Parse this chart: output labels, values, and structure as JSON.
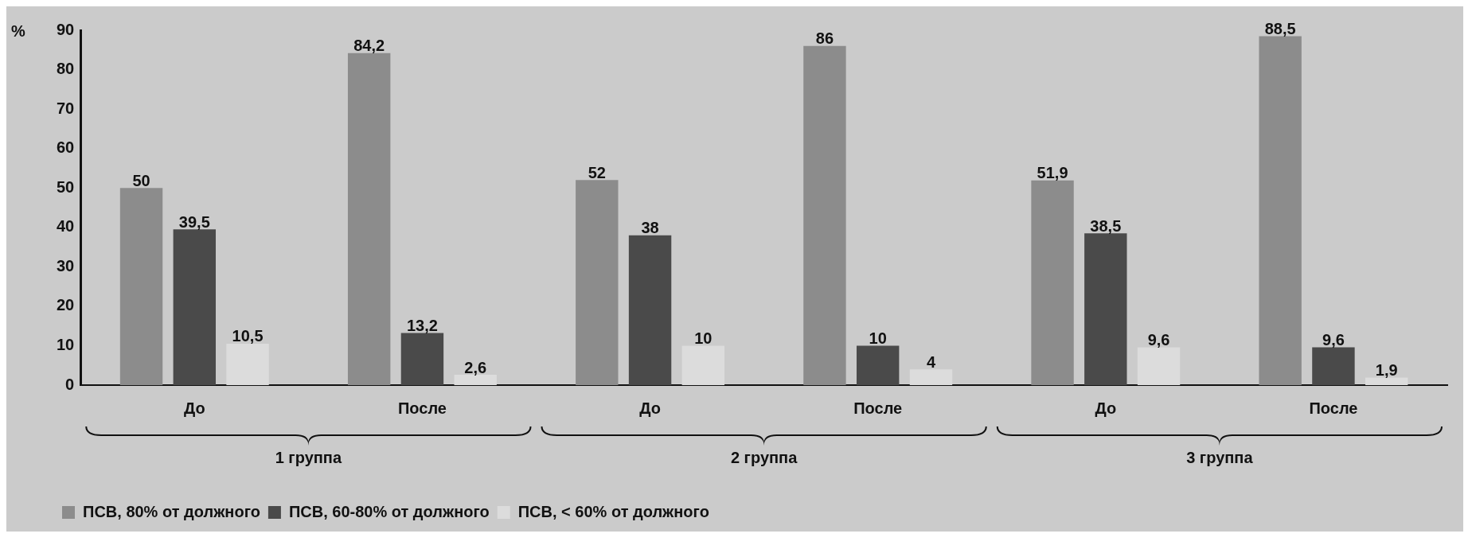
{
  "chart_data": {
    "type": "bar",
    "ylabel": "%",
    "categories": [
      "До",
      "После",
      "До",
      "После",
      "До",
      "После"
    ],
    "annotations": [
      "1 группа",
      "2 группа",
      "3 группа"
    ],
    "series": [
      {
        "name": "ПСВ, 80% от должного",
        "color": "#8c8c8c",
        "values": [
          50,
          84.2,
          52,
          86,
          51.9,
          88.5
        ],
        "value_labels": [
          "50",
          "84,2",
          "52",
          "86",
          "51,9",
          "88,5"
        ]
      },
      {
        "name": "ПСВ, 60-80% от должного",
        "color": "#4a4a4a",
        "values": [
          39.5,
          13.2,
          38,
          10,
          38.5,
          9.6
        ],
        "value_labels": [
          "39,5",
          "13,2",
          "38",
          "10",
          "38,5",
          "9,6"
        ]
      },
      {
        "name": "ПСВ, < 60% от должного",
        "color": "#dcdcdc",
        "values": [
          10.5,
          2.6,
          10,
          4,
          9.6,
          1.9
        ],
        "value_labels": [
          "10,5",
          "2,6",
          "10",
          "4",
          "9,6",
          "1,9"
        ]
      }
    ],
    "ylim": [
      0,
      90
    ],
    "yticks": [
      0,
      10,
      20,
      30,
      40,
      50,
      60,
      70,
      80,
      90
    ],
    "grid": false,
    "legend": "bottom left"
  }
}
